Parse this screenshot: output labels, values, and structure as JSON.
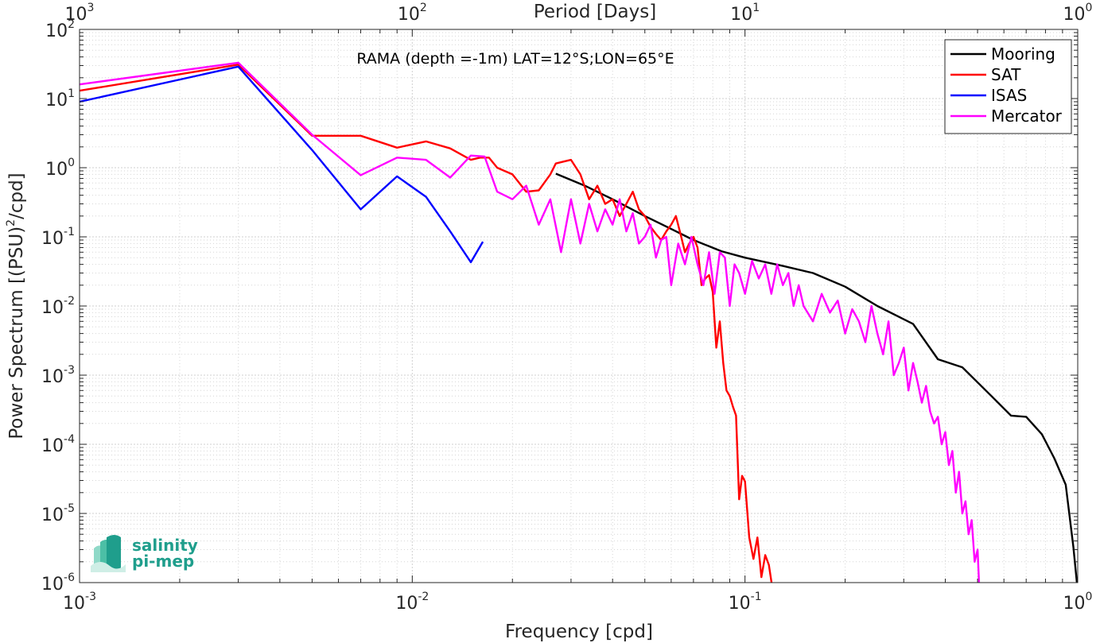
{
  "chart_data": {
    "type": "line",
    "xscale": "log",
    "yscale": "log",
    "xlim": [
      0.001,
      1
    ],
    "ylim": [
      1e-06,
      100
    ],
    "xlabel": "Frequency [cpd]",
    "ylabel_main": "Power Spectrum [(PSU)",
    "ylabel_sup": "2",
    "ylabel_tail": "/cpd]",
    "top_xlabel": "Period [Days]",
    "annotation": "RAMA (depth =-1m) LAT=12°S;LON=65°E",
    "grid": true,
    "legend_position": "top-right",
    "x_ticks": [
      {
        "value": 0.001,
        "base": "10",
        "exp": "-3"
      },
      {
        "value": 0.01,
        "base": "10",
        "exp": "-2"
      },
      {
        "value": 0.1,
        "base": "10",
        "exp": "-1"
      },
      {
        "value": 1,
        "base": "10",
        "exp": "0"
      }
    ],
    "top_ticks": [
      {
        "value": 0.001,
        "base": "10",
        "exp": "3"
      },
      {
        "value": 0.01,
        "base": "10",
        "exp": "2"
      },
      {
        "value": 0.1,
        "base": "10",
        "exp": "1"
      },
      {
        "value": 1,
        "base": "10",
        "exp": "0"
      }
    ],
    "y_ticks": [
      {
        "value": 100,
        "base": "10",
        "exp": "2"
      },
      {
        "value": 10,
        "base": "10",
        "exp": "1"
      },
      {
        "value": 1,
        "base": "10",
        "exp": "0"
      },
      {
        "value": 0.1,
        "base": "10",
        "exp": "-1"
      },
      {
        "value": 0.01,
        "base": "10",
        "exp": "-2"
      },
      {
        "value": 0.001,
        "base": "10",
        "exp": "-3"
      },
      {
        "value": 0.0001,
        "base": "10",
        "exp": "-4"
      },
      {
        "value": 1e-05,
        "base": "10",
        "exp": "-5"
      },
      {
        "value": 1e-06,
        "base": "10",
        "exp": "-6"
      }
    ],
    "series": [
      {
        "name": "Mooring",
        "color": "#000000",
        "x": [
          0.027,
          0.033,
          0.04,
          0.05,
          0.06,
          0.07,
          0.085,
          0.1,
          0.13,
          0.16,
          0.2,
          0.25,
          0.32,
          0.38,
          0.45,
          0.55,
          0.63,
          0.7,
          0.78,
          0.85,
          0.92,
          0.97,
          1.0
        ],
        "y": [
          0.82,
          0.55,
          0.35,
          0.2,
          0.13,
          0.09,
          0.062,
          0.05,
          0.038,
          0.03,
          0.019,
          0.01,
          0.0055,
          0.0017,
          0.0013,
          0.0005,
          0.00026,
          0.00025,
          0.00014,
          6.3e-05,
          2.6e-05,
          3.3e-06,
          7.5e-07
        ]
      },
      {
        "name": "SAT",
        "color": "#ff0000",
        "x": [
          0.001,
          0.003,
          0.005,
          0.007,
          0.009,
          0.011,
          0.013,
          0.015,
          0.016,
          0.017,
          0.018,
          0.02,
          0.022,
          0.024,
          0.026,
          0.027,
          0.028,
          0.03,
          0.032,
          0.034,
          0.036,
          0.038,
          0.04,
          0.042,
          0.044,
          0.046,
          0.048,
          0.05,
          0.052,
          0.054,
          0.056,
          0.058,
          0.06,
          0.062,
          0.064,
          0.066,
          0.068,
          0.07,
          0.072,
          0.074,
          0.076,
          0.078,
          0.08,
          0.082,
          0.084,
          0.086,
          0.088,
          0.09,
          0.092,
          0.094,
          0.096,
          0.098,
          0.1,
          0.103,
          0.106,
          0.109,
          0.112,
          0.115,
          0.118,
          0.121,
          0.125
        ],
        "y": [
          13,
          31,
          2.9,
          2.9,
          1.95,
          2.4,
          1.9,
          1.3,
          1.4,
          1.4,
          1.0,
          0.8,
          0.45,
          0.47,
          0.8,
          1.15,
          1.2,
          1.3,
          0.8,
          0.35,
          0.55,
          0.3,
          0.35,
          0.2,
          0.3,
          0.45,
          0.25,
          0.2,
          0.14,
          0.11,
          0.09,
          0.12,
          0.15,
          0.2,
          0.11,
          0.06,
          0.08,
          0.1,
          0.07,
          0.02,
          0.025,
          0.028,
          0.016,
          0.0025,
          0.006,
          0.0015,
          0.0006,
          0.0005,
          0.00035,
          0.00026,
          1.6e-05,
          3.5e-05,
          2.9e-05,
          4.5e-06,
          2.2e-06,
          4.5e-06,
          1.2e-06,
          2.5e-06,
          1.8e-06,
          8e-07,
          6e-07
        ]
      },
      {
        "name": "ISAS",
        "color": "#0000ff",
        "x": [
          0.001,
          0.003,
          0.005,
          0.007,
          0.009,
          0.011,
          0.013,
          0.015,
          0.0163
        ],
        "y": [
          9,
          29,
          1.8,
          0.25,
          0.75,
          0.38,
          0.12,
          0.043,
          0.085
        ]
      },
      {
        "name": "Mercator",
        "color": "#ff00ff",
        "x": [
          0.001,
          0.003,
          0.005,
          0.007,
          0.009,
          0.011,
          0.013,
          0.015,
          0.0165,
          0.018,
          0.02,
          0.022,
          0.024,
          0.026,
          0.028,
          0.03,
          0.032,
          0.034,
          0.036,
          0.038,
          0.04,
          0.042,
          0.044,
          0.046,
          0.048,
          0.05,
          0.052,
          0.054,
          0.056,
          0.058,
          0.06,
          0.063,
          0.066,
          0.069,
          0.072,
          0.075,
          0.078,
          0.081,
          0.084,
          0.087,
          0.09,
          0.093,
          0.096,
          0.1,
          0.105,
          0.11,
          0.115,
          0.12,
          0.125,
          0.13,
          0.135,
          0.14,
          0.145,
          0.15,
          0.16,
          0.17,
          0.18,
          0.19,
          0.2,
          0.21,
          0.22,
          0.23,
          0.24,
          0.25,
          0.26,
          0.27,
          0.28,
          0.29,
          0.3,
          0.31,
          0.32,
          0.33,
          0.34,
          0.35,
          0.36,
          0.37,
          0.38,
          0.39,
          0.4,
          0.41,
          0.42,
          0.43,
          0.44,
          0.45,
          0.46,
          0.47,
          0.48,
          0.49,
          0.5,
          0.505
        ],
        "y": [
          16,
          33,
          3.0,
          0.78,
          1.4,
          1.3,
          0.72,
          1.5,
          1.45,
          0.45,
          0.35,
          0.55,
          0.15,
          0.35,
          0.06,
          0.35,
          0.08,
          0.3,
          0.12,
          0.25,
          0.15,
          0.35,
          0.12,
          0.22,
          0.08,
          0.1,
          0.15,
          0.05,
          0.09,
          0.1,
          0.02,
          0.08,
          0.04,
          0.1,
          0.04,
          0.02,
          0.06,
          0.015,
          0.06,
          0.05,
          0.01,
          0.04,
          0.03,
          0.015,
          0.045,
          0.025,
          0.04,
          0.015,
          0.04,
          0.02,
          0.03,
          0.01,
          0.02,
          0.01,
          0.006,
          0.015,
          0.008,
          0.012,
          0.004,
          0.009,
          0.006,
          0.003,
          0.01,
          0.004,
          0.002,
          0.006,
          0.001,
          0.0015,
          0.0025,
          0.0006,
          0.0015,
          0.0008,
          0.0004,
          0.0007,
          0.0003,
          0.0002,
          0.00025,
          0.0001,
          0.00015,
          5e-05,
          8e-05,
          2e-05,
          4e-05,
          1e-05,
          1.5e-05,
          5e-06,
          8e-06,
          2e-06,
          3e-06,
          1e-06
        ]
      }
    ]
  },
  "logo": {
    "line1": "salinity",
    "line2": "pi-mep",
    "color": "#1f9e8c"
  }
}
